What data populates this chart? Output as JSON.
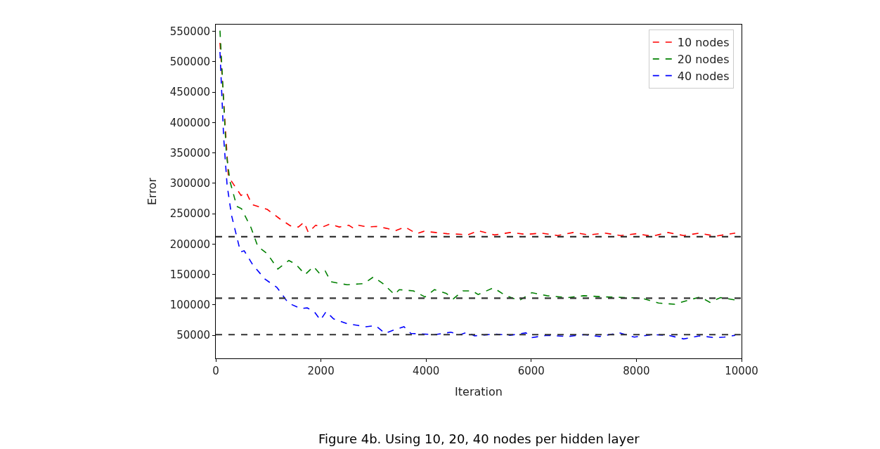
{
  "chart_data": {
    "type": "line",
    "xlabel": "Iteration",
    "ylabel": "Error",
    "annotations": [
      "Figure 4b. Using 10, 20, 40 nodes per hidden layer"
    ],
    "xlim": [
      0,
      10000
    ],
    "xticks": [
      0,
      2000,
      4000,
      6000,
      8000,
      10000
    ],
    "ylim": [
      12000,
      561000
    ],
    "yticks": [
      50000,
      100000,
      150000,
      200000,
      250000,
      300000,
      350000,
      400000,
      450000,
      500000,
      550000
    ],
    "legend": "top right",
    "line_style": "dashed",
    "marker": "none",
    "series": [
      {
        "name": "10 nodes",
        "color": "#ff0000",
        "x": [
          80,
          240,
          480,
          580,
          690,
          980,
          1210,
          1420,
          1570,
          1680,
          1760,
          1900,
          2030,
          2170,
          2350,
          2530,
          2620,
          2710,
          2880,
          3060,
          3240,
          3420,
          3600,
          3820,
          3960,
          4180,
          4400,
          4670,
          4760,
          4990,
          5300,
          5600,
          5900,
          6200,
          6500,
          6800,
          7100,
          7400,
          7700,
          8000,
          8300,
          8600,
          8900,
          9200,
          9500,
          9880
        ],
        "values": [
          531000,
          311000,
          280000,
          285000,
          265000,
          257000,
          242000,
          230000,
          228000,
          236000,
          219000,
          231000,
          228000,
          233000,
          228000,
          231000,
          226000,
          231000,
          228000,
          229000,
          226000,
          222000,
          228000,
          217000,
          221000,
          219000,
          217000,
          216000,
          214000,
          222000,
          215000,
          219000,
          216000,
          218000,
          214000,
          219000,
          215000,
          218000,
          214000,
          217000,
          213000,
          219000,
          214000,
          218000,
          213000,
          218000
        ]
      },
      {
        "name": "20 nodes",
        "color": "#008000",
        "x": [
          80,
          200,
          270,
          400,
          490,
          670,
          800,
          980,
          1180,
          1390,
          1520,
          1700,
          1860,
          1970,
          2080,
          2190,
          2500,
          2820,
          3000,
          3180,
          3400,
          3490,
          3760,
          3980,
          4160,
          4380,
          4520,
          4700,
          4880,
          4990,
          5280,
          5500,
          5770,
          6010,
          6300,
          6700,
          7000,
          7440,
          7800,
          8100,
          8420,
          8730,
          9000,
          9220,
          9400,
          9600,
          9880
        ],
        "values": [
          551000,
          350000,
          303000,
          262000,
          258000,
          227000,
          196000,
          184000,
          159000,
          173000,
          167000,
          150000,
          163000,
          152000,
          156000,
          138000,
          133000,
          135000,
          146000,
          135000,
          117000,
          125000,
          123000,
          113000,
          125000,
          119000,
          110000,
          123000,
          123000,
          117000,
          128000,
          116000,
          107000,
          120000,
          115000,
          112000,
          115000,
          113000,
          112000,
          111000,
          103000,
          101000,
          108000,
          113000,
          104000,
          112000,
          108000
        ]
      },
      {
        "name": "40 nodes",
        "color": "#0000ff",
        "x": [
          80,
          150,
          215,
          300,
          470,
          540,
          710,
          940,
          1160,
          1380,
          1610,
          1740,
          1880,
          1990,
          2100,
          2240,
          2500,
          2860,
          3040,
          3220,
          3400,
          3580,
          3710,
          4160,
          4470,
          4650,
          4790,
          4920,
          5300,
          5600,
          5900,
          6000,
          6300,
          6700,
          7000,
          7300,
          7680,
          7960,
          8300,
          8600,
          8900,
          9200,
          9500,
          9670,
          9880
        ],
        "values": [
          516000,
          375000,
          297000,
          247000,
          187000,
          189000,
          165000,
          142000,
          129000,
          103000,
          94000,
          95000,
          88000,
          75000,
          89000,
          77000,
          69000,
          64000,
          66000,
          53000,
          59000,
          64000,
          53000,
          51000,
          55000,
          51000,
          55000,
          49000,
          52000,
          50000,
          54000,
          46000,
          50000,
          48000,
          51000,
          48000,
          54000,
          47000,
          51000,
          50000,
          44000,
          49000,
          46000,
          47000,
          50000
        ]
      }
    ],
    "ref_lines": [
      {
        "axis": "y",
        "value": 212000,
        "color": "#333333",
        "line_style": "dashed"
      },
      {
        "axis": "y",
        "value": 111000,
        "color": "#333333",
        "line_style": "dashed"
      },
      {
        "axis": "y",
        "value": 51000,
        "color": "#333333",
        "line_style": "dashed"
      }
    ]
  }
}
